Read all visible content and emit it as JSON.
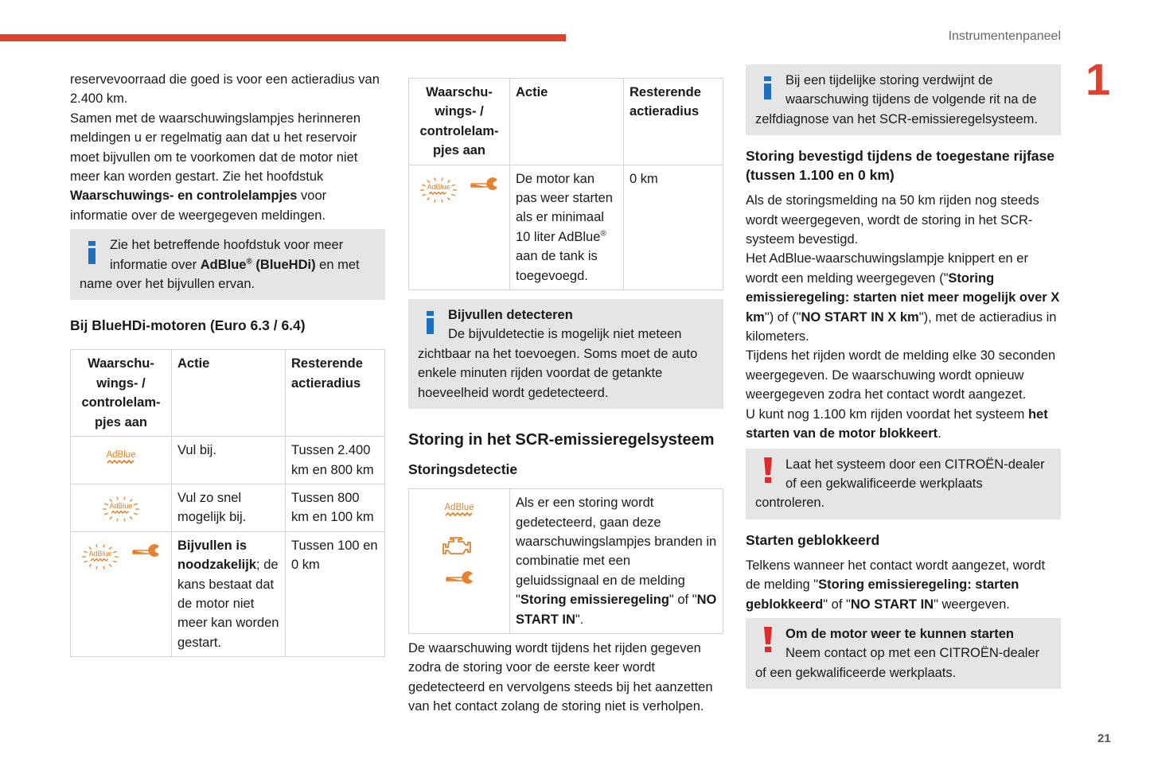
{
  "header": {
    "section": "Instrumentenpaneel",
    "chapter": "1",
    "page": "21"
  },
  "columns": [
    {
      "blocks": [
        {
          "kind": "p",
          "runs": [
            {
              "text": "reservevoorraad die goed is voor een actieradius van 2.400 km."
            }
          ]
        },
        {
          "kind": "p",
          "runs": [
            {
              "text": "Samen met de waarschuwingslampjes herinneren meldingen u er regelmatig aan dat u het reservoir moet bijvullen om te voorkomen dat de motor niet meer kan worden gestart. Zie het hoofdstuk "
            },
            {
              "text": "Waarschuwings- en controlelampjes",
              "bold": true
            },
            {
              "text": " voor informatie over de weergegeven meldingen."
            }
          ]
        },
        {
          "kind": "note",
          "runs": [
            {
              "text": "Zie het betreffende hoofdstuk voor meer informatie over "
            },
            {
              "text": "AdBlue",
              "bold": true
            },
            {
              "text": "®",
              "bold": true,
              "sup": true
            },
            {
              "text": " (BlueHDi)",
              "bold": true
            },
            {
              "text": " en met name over het bijvullen ervan."
            }
          ]
        },
        {
          "kind": "h",
          "text": "Bij BlueHDi-motoren (Euro 6.3 / 6.4)"
        },
        {
          "kind": "table",
          "headers": [
            "Waarschu-wings- / controlelam-pjes aan",
            "Actie",
            "Resterende actieradius"
          ],
          "rows": [
            {
              "icon": "AdBlue",
              "action": [
                {
                  "text": "Vul bij."
                }
              ],
              "range": "Tussen 2.400 km en 800 km"
            },
            {
              "icon": "AdBlue",
              "action": [
                {
                  "text": "Vul zo snel mogelijk bij."
                }
              ],
              "range": "Tussen 800 km en 100 km"
            },
            {
              "icon": "AdBlue",
              "action": [
                {
                  "text": "Bijvullen is noodzakelijk",
                  "bold": true
                },
                {
                  "text": "; de kans bestaat dat de motor niet meer kan worden gestart."
                }
              ],
              "range": "Tussen 100 en 0 km"
            }
          ]
        }
      ]
    },
    {
      "blocks": [
        {
          "kind": "table",
          "headers": [
            "Waarschu-wings- / controlelam-pjes aan",
            "Actie",
            "Resterende actieradius"
          ],
          "rows": [
            {
              "icon": "AdBlue",
              "action": [
                {
                  "text": "De motor kan pas weer starten als er minimaal 10 liter AdBlue"
                },
                {
                  "text": "®",
                  "sup": true
                },
                {
                  "text": " aan de tank is toegevoegd."
                }
              ],
              "range": "0 km"
            }
          ]
        },
        {
          "kind": "note",
          "title": "Bijvullen detecteren",
          "runs": [
            {
              "text": "De bijvuldetectie is mogelijk niet meteen zichtbaar na het toevoegen. Soms moet de auto enkele minuten rijden voordat de getankte hoeveelheid wordt gedetecteerd."
            }
          ]
        },
        {
          "kind": "hl",
          "text": "Storing in het SCR-emissieregelsysteem"
        },
        {
          "kind": "h",
          "text": "Storingsdetectie"
        },
        {
          "kind": "table2",
          "rows": [
            {
              "icon": "AdBlue",
              "action": [
                {
                  "text": "Als er een storing wordt gedetecteerd, gaan deze waarschuwingslampjes branden in combinatie met een geluidssignaal en de melding \""
                },
                {
                  "text": "Storing emissieregeling",
                  "bold": true
                },
                {
                  "text": "\" of \""
                },
                {
                  "text": "NO START IN",
                  "bold": true
                },
                {
                  "text": "\"."
                }
              ]
            }
          ]
        },
        {
          "kind": "p",
          "runs": [
            {
              "text": "De waarschuwing wordt tijdens het rijden gegeven zodra de storing voor de eerste keer wordt gedetecteerd en vervolgens steeds bij het aanzetten van het contact zolang de storing niet is verholpen."
            }
          ]
        }
      ]
    },
    {
      "blocks": [
        {
          "kind": "note",
          "runs": [
            {
              "text": "Bij een tijdelijke storing verdwijnt de waarschuwing tijdens de volgende rit na de zelfdiagnose van het SCR-emissieregelsysteem."
            }
          ]
        },
        {
          "kind": "h",
          "text": "Storing bevestigd tijdens de toegestane rijfase (tussen 1.100 en 0 km)"
        },
        {
          "kind": "p",
          "runs": [
            {
              "text": "Als de storingsmelding na 50 km rijden nog steeds wordt weergegeven, wordt de storing in het SCR-systeem bevestigd."
            }
          ]
        },
        {
          "kind": "p",
          "runs": [
            {
              "text": "Het AdBlue-waarschuwingslampje knippert en er wordt een melding weergegeven (\""
            },
            {
              "text": "Storing emissieregeling: starten niet meer mogelijk over X km",
              "bold": true
            },
            {
              "text": "\") of (\""
            },
            {
              "text": "NO START IN X km",
              "bold": true
            },
            {
              "text": "\"), met de actieradius in kilometers."
            }
          ]
        },
        {
          "kind": "p",
          "runs": [
            {
              "text": "Tijdens het rijden wordt de melding elke 30 seconden weergegeven. De waarschuwing wordt opnieuw weergegeven zodra het contact wordt aangezet."
            }
          ]
        },
        {
          "kind": "p",
          "runs": [
            {
              "text": "U kunt nog 1.100 km rijden voordat het systeem "
            },
            {
              "text": "het starten van de motor blokkeert",
              "bold": true
            },
            {
              "text": "."
            }
          ]
        },
        {
          "kind": "warn",
          "runs": [
            {
              "text": "Laat het systeem door een CITROËN-dealer of een gekwalificeerde werkplaats controleren."
            }
          ]
        },
        {
          "kind": "h",
          "text": "Starten geblokkeerd"
        },
        {
          "kind": "p",
          "runs": [
            {
              "text": "Telkens wanneer het contact wordt aangezet, wordt de melding \""
            },
            {
              "text": "Storing emissieregeling: starten geblokkeerd",
              "bold": true
            },
            {
              "text": "\" of \""
            },
            {
              "text": "NO START IN",
              "bold": true
            },
            {
              "text": "\" weergeven."
            }
          ]
        },
        {
          "kind": "warn",
          "title": "Om de motor weer te kunnen starten",
          "runs": [
            {
              "text": "Neem contact op met een CITROËN-dealer of een gekwalificeerde werkplaats."
            }
          ]
        }
      ]
    }
  ]
}
